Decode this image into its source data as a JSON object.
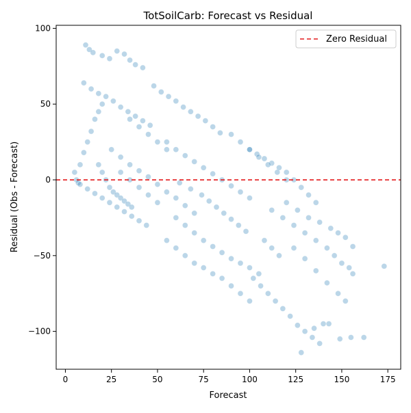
{
  "chart_data": {
    "type": "scatter",
    "title": "TotSoilCarb: Forecast vs Residual",
    "xlabel": "Forecast",
    "ylabel": "Residual (Obs - Forecast)",
    "xlim": [
      -5,
      182
    ],
    "ylim": [
      -125,
      102
    ],
    "xticks": [
      0,
      25,
      50,
      75,
      100,
      125,
      150,
      175
    ],
    "yticks": [
      -100,
      -50,
      0,
      50,
      100
    ],
    "tick_labels_x": [
      "0",
      "25",
      "50",
      "75",
      "100",
      "125",
      "150",
      "175"
    ],
    "tick_labels_y": [
      "−100",
      "−50",
      "0",
      "50",
      "100"
    ],
    "reference_line": {
      "y": 0,
      "style": "dashed",
      "color": "#e41a1c",
      "label": "Zero Residual"
    },
    "legend": {
      "placement": "upper-right",
      "entries": [
        "Zero Residual"
      ]
    },
    "grid": false,
    "point_color": "#1f77b4",
    "series": [
      {
        "points": [
          [
            5,
            5
          ],
          [
            6,
            0
          ],
          [
            7,
            -2
          ],
          [
            8,
            10
          ],
          [
            10,
            18
          ],
          [
            12,
            25
          ],
          [
            14,
            32
          ],
          [
            16,
            40
          ],
          [
            18,
            45
          ],
          [
            20,
            50
          ],
          [
            11,
            89
          ],
          [
            13,
            86
          ],
          [
            15,
            84
          ],
          [
            20,
            82
          ],
          [
            24,
            80
          ],
          [
            28,
            85
          ],
          [
            32,
            83
          ],
          [
            35,
            79
          ],
          [
            38,
            76
          ],
          [
            42,
            74
          ],
          [
            10,
            64
          ],
          [
            14,
            60
          ],
          [
            18,
            57
          ],
          [
            22,
            55
          ],
          [
            26,
            52
          ],
          [
            30,
            48
          ],
          [
            34,
            45
          ],
          [
            38,
            42
          ],
          [
            42,
            39
          ],
          [
            46,
            36
          ],
          [
            8,
            -3
          ],
          [
            12,
            -6
          ],
          [
            16,
            -9
          ],
          [
            20,
            -12
          ],
          [
            24,
            -15
          ],
          [
            28,
            -18
          ],
          [
            32,
            -21
          ],
          [
            36,
            -24
          ],
          [
            40,
            -27
          ],
          [
            44,
            -30
          ],
          [
            25,
            20
          ],
          [
            30,
            15
          ],
          [
            35,
            10
          ],
          [
            40,
            6
          ],
          [
            45,
            2
          ],
          [
            50,
            -3
          ],
          [
            55,
            -8
          ],
          [
            60,
            -12
          ],
          [
            65,
            -17
          ],
          [
            70,
            -22
          ],
          [
            48,
            62
          ],
          [
            52,
            58
          ],
          [
            56,
            55
          ],
          [
            60,
            52
          ],
          [
            64,
            48
          ],
          [
            68,
            45
          ],
          [
            72,
            42
          ],
          [
            76,
            39
          ],
          [
            80,
            35
          ],
          [
            84,
            31
          ],
          [
            55,
            25
          ],
          [
            60,
            20
          ],
          [
            65,
            16
          ],
          [
            70,
            12
          ],
          [
            75,
            8
          ],
          [
            80,
            4
          ],
          [
            85,
            0
          ],
          [
            90,
            -4
          ],
          [
            95,
            -8
          ],
          [
            100,
            -12
          ],
          [
            60,
            -25
          ],
          [
            65,
            -30
          ],
          [
            70,
            -35
          ],
          [
            75,
            -40
          ],
          [
            80,
            -44
          ],
          [
            85,
            -48
          ],
          [
            90,
            -52
          ],
          [
            95,
            -55
          ],
          [
            100,
            -58
          ],
          [
            105,
            -62
          ],
          [
            55,
            -40
          ],
          [
            60,
            -45
          ],
          [
            65,
            -50
          ],
          [
            70,
            -55
          ],
          [
            75,
            -58
          ],
          [
            80,
            -62
          ],
          [
            85,
            -65
          ],
          [
            90,
            -70
          ],
          [
            95,
            -75
          ],
          [
            100,
            -80
          ],
          [
            100,
            20
          ],
          [
            104,
            17
          ],
          [
            108,
            14
          ],
          [
            112,
            11
          ],
          [
            116,
            8
          ],
          [
            120,
            5
          ],
          [
            124,
            0
          ],
          [
            128,
            -5
          ],
          [
            132,
            -10
          ],
          [
            136,
            -15
          ],
          [
            102,
            -65
          ],
          [
            106,
            -70
          ],
          [
            110,
            -75
          ],
          [
            114,
            -80
          ],
          [
            118,
            -85
          ],
          [
            122,
            -90
          ],
          [
            126,
            -96
          ],
          [
            130,
            -100
          ],
          [
            134,
            -104
          ],
          [
            138,
            -108
          ],
          [
            112,
            -20
          ],
          [
            118,
            -25
          ],
          [
            124,
            -30
          ],
          [
            130,
            -35
          ],
          [
            136,
            -40
          ],
          [
            142,
            -45
          ],
          [
            146,
            -50
          ],
          [
            150,
            -55
          ],
          [
            154,
            -58
          ],
          [
            156,
            -62
          ],
          [
            120,
            -15
          ],
          [
            126,
            -20
          ],
          [
            132,
            -25
          ],
          [
            138,
            -28
          ],
          [
            144,
            -32
          ],
          [
            148,
            -35
          ],
          [
            152,
            -38
          ],
          [
            156,
            -44
          ],
          [
            124,
            -45
          ],
          [
            130,
            -52
          ],
          [
            136,
            -60
          ],
          [
            142,
            -68
          ],
          [
            148,
            -75
          ],
          [
            152,
            -80
          ],
          [
            128,
            -114
          ],
          [
            135,
            -98
          ],
          [
            140,
            -95
          ],
          [
            143,
            -95
          ],
          [
            149,
            -105
          ],
          [
            155,
            -104
          ],
          [
            162,
            -104
          ],
          [
            173,
            -57
          ],
          [
            62,
            -2
          ],
          [
            68,
            -6
          ],
          [
            74,
            -10
          ],
          [
            78,
            -14
          ],
          [
            82,
            -18
          ],
          [
            86,
            -22
          ],
          [
            90,
            -26
          ],
          [
            94,
            -30
          ],
          [
            98,
            -34
          ],
          [
            35,
            40
          ],
          [
            40,
            35
          ],
          [
            45,
            30
          ],
          [
            50,
            25
          ],
          [
            55,
            20
          ],
          [
            30,
            5
          ],
          [
            35,
            0
          ],
          [
            40,
            -5
          ],
          [
            45,
            -10
          ],
          [
            50,
            -15
          ],
          [
            18,
            10
          ],
          [
            20,
            5
          ],
          [
            22,
            0
          ],
          [
            24,
            -5
          ],
          [
            26,
            -8
          ],
          [
            28,
            -10
          ],
          [
            30,
            -12
          ],
          [
            32,
            -14
          ],
          [
            34,
            -16
          ],
          [
            36,
            -18
          ],
          [
            90,
            30
          ],
          [
            95,
            25
          ],
          [
            100,
            20
          ],
          [
            105,
            15
          ],
          [
            110,
            10
          ],
          [
            115,
            5
          ],
          [
            120,
            0
          ],
          [
            108,
            -40
          ],
          [
            112,
            -45
          ],
          [
            116,
            -50
          ]
        ]
      }
    ]
  }
}
